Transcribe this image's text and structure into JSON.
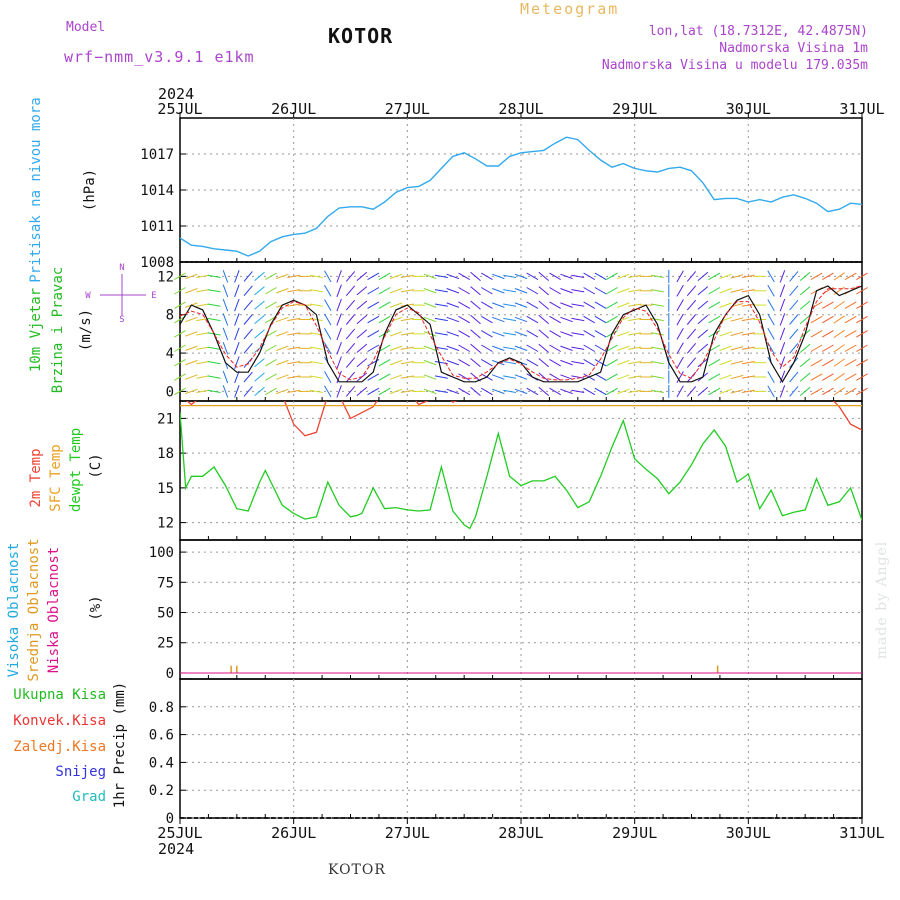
{
  "header": {
    "model_label": "Model",
    "model_name": "wrf−nmm_v3.9.1  e1km",
    "city": "KOTOR",
    "meteogram": "Meteogram",
    "lonlat": "lon,lat (18.7312E, 42.4875N)",
    "altitude": "Nadmorska Visina 1m",
    "model_altitude": "Nadmorska Visina u modelu 179.035m",
    "year": "2024",
    "footer_city": "KOTOR",
    "credit": "made by Angel"
  },
  "colors": {
    "pressure": "#33aaee",
    "temp2m": "#ee4433",
    "sfc_temp": "#e8a020",
    "dewpoint": "#22cc22",
    "high_cloud": "#22aadd",
    "mid_cloud": "#dd9922",
    "low_cloud": "#dd1188",
    "wind_label": "#22bb22",
    "precip_total": "#22bb22",
    "precip_conv": "#ee3333",
    "precip_ice": "#ee7722",
    "snow": "#3333dd",
    "hail": "#22bbbb",
    "header": "#aa44cc",
    "meteogram": "#e8b860"
  },
  "chart_data": [
    {
      "id": "pressure",
      "type": "line",
      "ylabel_1": "Pritisak na nivou mora",
      "ylabel_2": "(hPa)",
      "x_ticks": [
        "25JUL",
        "26JUL",
        "27JUL",
        "28JUL",
        "29JUL",
        "30JUL",
        "31JUL"
      ],
      "ylim": [
        1008,
        1020
      ],
      "yticks": [
        1008,
        1011,
        1014,
        1017
      ],
      "x_days": [
        0,
        0.1,
        0.2,
        0.3,
        0.4,
        0.5,
        0.6,
        0.7,
        0.8,
        0.9,
        1.0,
        1.1,
        1.2,
        1.3,
        1.4,
        1.5,
        1.6,
        1.7,
        1.8,
        1.9,
        2.0,
        2.1,
        2.2,
        2.3,
        2.4,
        2.5,
        2.6,
        2.7,
        2.8,
        2.9,
        3.0,
        3.1,
        3.2,
        3.3,
        3.4,
        3.5,
        3.6,
        3.7,
        3.8,
        3.9,
        4.0,
        4.1,
        4.2,
        4.3,
        4.4,
        4.5,
        4.6,
        4.7,
        4.8,
        4.9,
        5.0,
        5.1,
        5.2,
        5.3,
        5.4,
        5.5,
        5.6,
        5.7,
        5.8,
        5.9,
        6.0
      ],
      "values": [
        1010.0,
        1009.4,
        1009.3,
        1009.1,
        1009.0,
        1008.9,
        1008.5,
        1008.9,
        1009.7,
        1010.1,
        1010.3,
        1010.4,
        1010.8,
        1011.8,
        1012.5,
        1012.6,
        1012.6,
        1012.4,
        1013.0,
        1013.8,
        1014.2,
        1014.3,
        1014.8,
        1015.8,
        1016.8,
        1017.1,
        1016.6,
        1016.0,
        1016.0,
        1016.8,
        1017.1,
        1017.2,
        1017.3,
        1017.9,
        1018.4,
        1018.2,
        1017.3,
        1016.5,
        1015.9,
        1016.2,
        1015.8,
        1015.6,
        1015.5,
        1015.8,
        1015.9,
        1015.6,
        1014.6,
        1013.2,
        1013.3,
        1013.3,
        1013.0,
        1013.2,
        1013.0,
        1013.4,
        1013.6,
        1013.3,
        1012.9,
        1012.2,
        1012.4,
        1012.9,
        1012.8
      ]
    },
    {
      "id": "wind",
      "type": "line",
      "ylabel_1": "10m Vjetar",
      "ylabel_2": "Brzina i Pravac",
      "ylabel_3": "(m/s)",
      "compass": [
        "N",
        "W",
        "E",
        "S"
      ],
      "ylim": [
        -1,
        13.5
      ],
      "yticks": [
        0,
        4,
        8,
        12
      ],
      "x_days": [
        0,
        0.1,
        0.2,
        0.3,
        0.4,
        0.5,
        0.6,
        0.7,
        0.8,
        0.9,
        1.0,
        1.1,
        1.2,
        1.3,
        1.4,
        1.5,
        1.6,
        1.7,
        1.8,
        1.9,
        2.0,
        2.1,
        2.2,
        2.3,
        2.4,
        2.5,
        2.6,
        2.7,
        2.8,
        2.9,
        3.0,
        3.1,
        3.2,
        3.3,
        3.4,
        3.5,
        3.6,
        3.7,
        3.8,
        3.9,
        4.0,
        4.1,
        4.2,
        4.3,
        4.4,
        4.5,
        4.6,
        4.7,
        4.8,
        4.9,
        5.0,
        5.1,
        5.2,
        5.3,
        5.4,
        5.5,
        5.6,
        5.7,
        5.8,
        5.9,
        6.0
      ],
      "speed": [
        7.0,
        9.0,
        8.5,
        6.0,
        3.0,
        2.0,
        2.0,
        4.0,
        7.0,
        9.0,
        9.5,
        9.0,
        8.0,
        3.0,
        1.0,
        1.0,
        1.0,
        2.0,
        6.0,
        8.5,
        9.0,
        8.0,
        7.0,
        2.0,
        1.5,
        1.0,
        1.0,
        1.5,
        3.0,
        3.5,
        3.0,
        1.5,
        1.0,
        1.0,
        1.0,
        1.0,
        1.5,
        2.0,
        6.0,
        8.0,
        8.5,
        9.0,
        7.0,
        3.0,
        1.0,
        1.0,
        1.5,
        6.0,
        8.0,
        9.5,
        10.0,
        8.0,
        3.0,
        1.0,
        3.0,
        6.0,
        10.5,
        11.0,
        10.0,
        10.5,
        11.0
      ],
      "direction_deg": [
        60,
        70,
        80,
        100,
        160,
        200,
        220,
        230,
        60,
        70,
        80,
        90,
        100,
        150,
        200,
        220,
        230,
        240,
        60,
        70,
        80,
        90,
        110,
        280,
        290,
        300,
        310,
        300,
        290,
        280,
        290,
        300,
        310,
        300,
        290,
        280,
        300,
        120,
        60,
        70,
        80,
        90,
        100,
        180,
        210,
        220,
        230,
        60,
        70,
        75,
        80,
        90,
        150,
        200,
        220,
        230,
        240,
        240,
        235,
        240,
        240
      ]
    },
    {
      "id": "temperature",
      "type": "line",
      "ylabel_1": "2m Temp",
      "ylabel_2": "SFC Temp",
      "ylabel_3": "dewpt Temp",
      "ylabel_4": "(C)",
      "ylim": [
        10.5,
        22.5
      ],
      "yticks": [
        12,
        15,
        18,
        21
      ],
      "series": [
        {
          "name": "2m Temp",
          "x_days": [
            0,
            0.1,
            0.2,
            0.3,
            0.4,
            0.5,
            0.6,
            0.7,
            0.8,
            0.9,
            1.0,
            1.1,
            1.2,
            1.3,
            1.4,
            1.5,
            1.6,
            1.7,
            1.8,
            1.9,
            2.0,
            2.1,
            2.2,
            2.3,
            2.4,
            2.5,
            2.6,
            2.7,
            2.8,
            2.9,
            3.0,
            3.1,
            3.2,
            3.3,
            3.4,
            3.5,
            3.6,
            3.7,
            3.8,
            3.9,
            4.0,
            4.1,
            4.2,
            4.3,
            4.4,
            4.5,
            4.6,
            4.7,
            4.8,
            4.9,
            5.0,
            5.1,
            5.2,
            5.3,
            5.4,
            5.5,
            5.6,
            5.7,
            5.8,
            5.9,
            6.0
          ],
          "values": [
            23,
            22.2,
            23,
            24,
            24,
            24,
            23.5,
            23,
            22.8,
            23,
            20.5,
            19.5,
            19.8,
            23,
            23,
            21,
            21.5,
            22,
            23.5,
            23.5,
            23.5,
            22.2,
            22.6,
            23.5,
            22.4,
            22.8,
            23.2,
            24,
            24,
            23.5,
            24,
            24,
            23.5,
            23,
            23.5,
            23,
            23.5,
            23,
            24,
            23.5,
            23.5,
            24,
            23,
            23.5,
            23,
            23.5,
            24,
            23.5,
            24,
            23.5,
            23,
            23.5,
            24,
            23.5,
            23,
            23,
            22.7,
            23,
            22,
            20.5,
            20
          ]
        },
        {
          "name": "SFC Temp",
          "x_days": [
            0,
            6
          ],
          "values": [
            22.1,
            22.1
          ]
        },
        {
          "name": "dewpt Temp",
          "x_days": [
            0,
            0.05,
            0.1,
            0.2,
            0.3,
            0.4,
            0.5,
            0.6,
            0.7,
            0.75,
            0.8,
            0.9,
            1.0,
            1.1,
            1.2,
            1.3,
            1.4,
            1.5,
            1.55,
            1.6,
            1.7,
            1.8,
            1.9,
            2.0,
            2.1,
            2.2,
            2.3,
            2.4,
            2.5,
            2.55,
            2.6,
            2.7,
            2.8,
            2.9,
            3.0,
            3.1,
            3.2,
            3.3,
            3.4,
            3.5,
            3.6,
            3.7,
            3.8,
            3.9,
            4.0,
            4.1,
            4.2,
            4.3,
            4.4,
            4.5,
            4.6,
            4.7,
            4.8,
            4.9,
            5.0,
            5.1,
            5.2,
            5.3,
            5.4,
            5.5,
            5.6,
            5.7,
            5.8,
            5.9,
            6.0
          ],
          "values": [
            21.5,
            15.0,
            16.0,
            16.0,
            16.8,
            15.2,
            13.2,
            13.0,
            15.5,
            16.5,
            15.5,
            13.5,
            12.8,
            12.3,
            12.5,
            15.5,
            13.5,
            12.5,
            12.6,
            12.8,
            15.0,
            13.2,
            13.3,
            13.1,
            13.0,
            13.1,
            16.8,
            13.0,
            11.8,
            11.5,
            12.5,
            16.0,
            19.7,
            16.0,
            15.2,
            15.6,
            15.6,
            16.0,
            14.8,
            13.3,
            13.8,
            16.0,
            18.5,
            20.8,
            17.5,
            16.6,
            15.8,
            14.5,
            15.5,
            17.0,
            18.8,
            20.0,
            18.6,
            15.5,
            16.2,
            13.2,
            14.8,
            12.6,
            12.9,
            13.1,
            15.8,
            13.5,
            13.8,
            15.0,
            12.2
          ]
        }
      ]
    },
    {
      "id": "cloud",
      "type": "line",
      "ylabel_1": "Visoka Oblacnost",
      "ylabel_2": "Srednja Oblacnost",
      "ylabel_3": "Niska Oblacnost",
      "ylabel_4": "(%)",
      "ylim": [
        -5,
        110
      ],
      "yticks": [
        0,
        25,
        50,
        75,
        100
      ],
      "series": [
        {
          "name": "Visoka Oblacnost",
          "x_days": [
            0,
            6
          ],
          "values": [
            0,
            0
          ]
        },
        {
          "name": "Srednja Oblacnost",
          "x_days": [
            0.45,
            0.5,
            4.73
          ],
          "values": [
            3,
            3,
            3
          ]
        },
        {
          "name": "Niska Oblacnost",
          "x_days": [
            0,
            6
          ],
          "values": [
            0,
            0
          ]
        }
      ]
    },
    {
      "id": "precip",
      "type": "bar",
      "ylabel_1": "1hr Precip",
      "ylabel_2": "(mm)",
      "ylim": [
        0,
        1.0
      ],
      "yticks": [
        0,
        0.2,
        0.4,
        0.6,
        0.8
      ],
      "ytick_labels": [
        "0",
        "0.2",
        "0.4",
        "0.6",
        "0.8"
      ],
      "legend": [
        "Ukupna Kisa",
        "Konvek.Kisa",
        "Zaledj.Kisa",
        "Snijeg",
        "Grad"
      ],
      "values": [
        0
      ]
    }
  ]
}
